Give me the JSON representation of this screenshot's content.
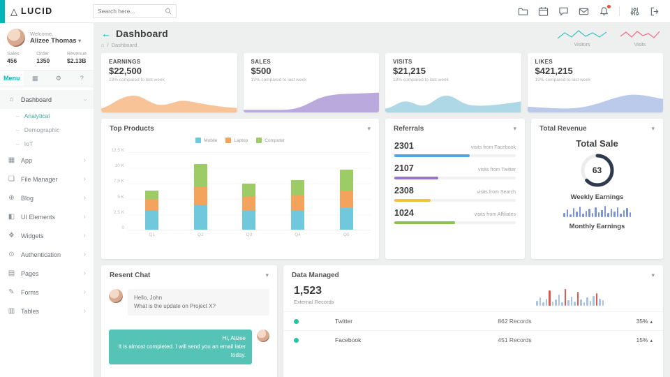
{
  "glyphs": {
    "logo_triangle": "△",
    "caret_down": "▾",
    "chevron_right": "›",
    "home": "⌂",
    "slash": "/",
    "dash": "–",
    "caret_up": "▴",
    "back_arrow": "←",
    "tab_grid": "▦",
    "tab_gear": "⚙",
    "tab_help": "?"
  },
  "header": {
    "logo_text": "LUCID",
    "search_placeholder": "Search here...",
    "icons": [
      "folder",
      "calendar",
      "chat",
      "mail",
      "bell",
      "sliders",
      "logout"
    ]
  },
  "sidebar": {
    "welcome": "Welcome,",
    "user_name": "Alizee Thomas",
    "stats": [
      {
        "label": "Sales",
        "value": "456"
      },
      {
        "label": "Order",
        "value": "1350"
      },
      {
        "label": "Revenue",
        "value": "$2.13B"
      }
    ],
    "menu_tab_label": "Menu",
    "dashboard_item": {
      "label": "Dashboard",
      "icon": "⌂"
    },
    "sub_items": [
      {
        "label": "Analytical"
      },
      {
        "label": "Demographic"
      },
      {
        "label": "IoT"
      }
    ],
    "items": [
      {
        "label": "App",
        "icon": "▦"
      },
      {
        "label": "File Manager",
        "icon": "❏"
      },
      {
        "label": "Blog",
        "icon": "⊕"
      },
      {
        "label": "UI Elements",
        "icon": "◧"
      },
      {
        "label": "Widgets",
        "icon": "❖"
      },
      {
        "label": "Authentication",
        "icon": "⊙"
      },
      {
        "label": "Pages",
        "icon": "▤"
      },
      {
        "label": "Forms",
        "icon": "✎"
      },
      {
        "label": "Tables",
        "icon": "▥"
      }
    ]
  },
  "page": {
    "title": "Dashboard",
    "breadcrumb": "Dashboard",
    "mini_charts": [
      {
        "label": "Visitors",
        "color": "#3fc6c0"
      },
      {
        "label": "Visits",
        "color": "#f2708f"
      }
    ]
  },
  "stat_cards": [
    {
      "title": "EARNINGS",
      "value": "$22,500",
      "note": "19% compared to last week",
      "color": "#f8bd8d"
    },
    {
      "title": "SALES",
      "value": "$500",
      "note": "19% compared to last week",
      "color": "#b3a0d8"
    },
    {
      "title": "VISITS",
      "value": "$21,215",
      "note": "19% compared to last week",
      "color": "#a6d4e4"
    },
    {
      "title": "LIKES",
      "value": "$421,215",
      "note": "19% compared to last week",
      "color": "#b4c3e9"
    }
  ],
  "top_products": {
    "title": "Top Products",
    "chart_data": {
      "type": "bar",
      "stacked": true,
      "categories": [
        "Q1",
        "Q2",
        "Q3",
        "Q4",
        "Q5"
      ],
      "series": [
        {
          "name": "Mobile",
          "color": "#6fc8dc",
          "values": [
            3000,
            4000,
            3000,
            3000,
            3500
          ]
        },
        {
          "name": "Laptop",
          "color": "#f3a35c",
          "values": [
            1800,
            2800,
            2200,
            2500,
            2800
          ]
        },
        {
          "name": "Computer",
          "color": "#9dcc67",
          "values": [
            1500,
            3700,
            2100,
            2400,
            3300
          ]
        }
      ],
      "y_ticks": [
        "12.5 K",
        "10 K",
        "7.5 K",
        "5 K",
        "2.5 K",
        "0"
      ],
      "ylim": [
        0,
        12500
      ],
      "legend_position": "top"
    }
  },
  "referrals": {
    "title": "Referrals",
    "rows": [
      {
        "value": "2301",
        "label": "visits from Facebook",
        "color": "#4aa7e8",
        "percent": 62
      },
      {
        "value": "2107",
        "label": "visits from Twitter",
        "color": "#9575cd",
        "percent": 36
      },
      {
        "value": "2308",
        "label": "visits from Search",
        "color": "#f2c13d",
        "percent": 30
      },
      {
        "value": "1024",
        "label": "visits from Affiliates",
        "color": "#8bc34a",
        "percent": 50
      }
    ]
  },
  "total_revenue": {
    "title": "Total Revenue",
    "heading": "Total Sale",
    "gauge_value": "63",
    "gauge_percent": 63,
    "gauge_color": "#2e3a4d",
    "weekly_label": "Weekly Earnings",
    "monthly_label": "Monthly Earnings",
    "spark_color": "#7a93dd",
    "spark_values": [
      6,
      11,
      4,
      13,
      8,
      15,
      5,
      9,
      12,
      6,
      14,
      7,
      10,
      16,
      6,
      12,
      8,
      14,
      5,
      10,
      13,
      7
    ]
  },
  "chat": {
    "title": "Resent Chat",
    "bubble_color": "#56c3b7",
    "incoming": {
      "line1": "Hello, John",
      "line2": "What is the update on Project X?"
    },
    "outgoing": {
      "line1": "Hi, Alizee",
      "line2": "It is almost completed. I will send you an email later today."
    }
  },
  "data_managed": {
    "title": "Data Managed",
    "big_value": "1,523",
    "big_label": "External Records",
    "spark_blue": "#a9c3e6",
    "spark_red": "#e2574c",
    "spark_values": [
      7,
      12,
      5,
      10,
      22,
      6,
      9,
      16,
      5,
      24,
      8,
      13,
      6,
      20,
      9,
      5,
      12,
      7,
      14,
      18,
      10,
      8
    ],
    "spark_red_indices": [
      4,
      9,
      13,
      19
    ],
    "rows": [
      {
        "name": "Twitter",
        "records": "862 Records",
        "percent": "35%",
        "dot_color": "#27c1a0"
      },
      {
        "name": "Facebook",
        "records": "451 Records",
        "percent": "15%",
        "dot_color": "#27c1a0"
      }
    ]
  }
}
